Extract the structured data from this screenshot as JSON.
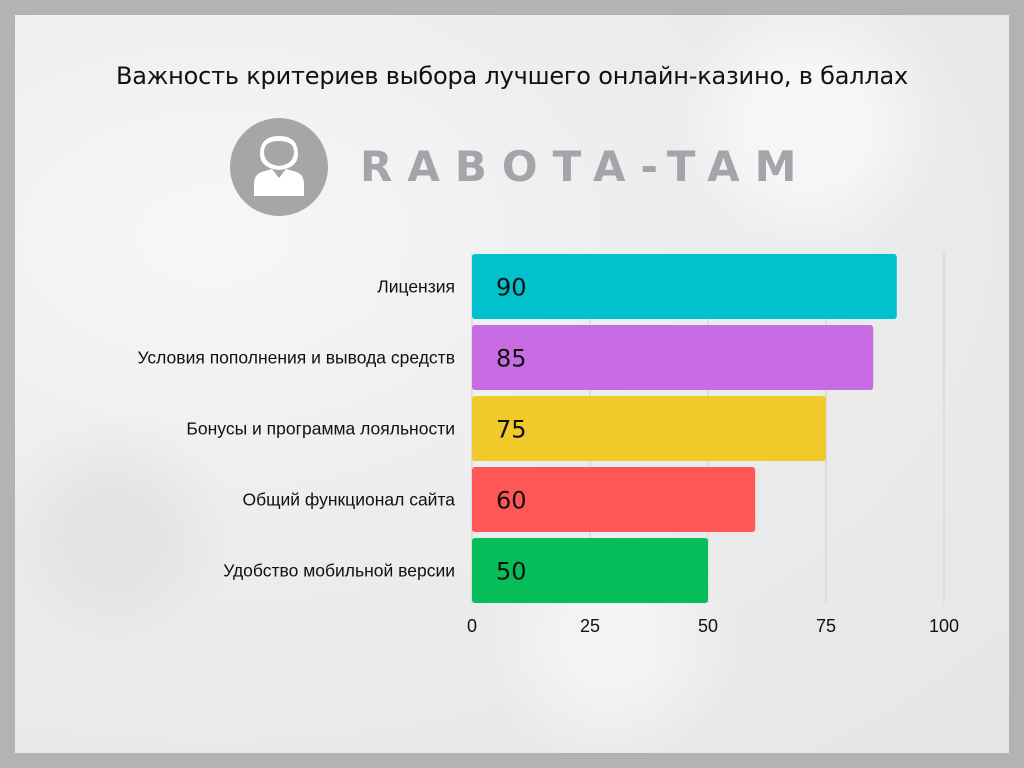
{
  "title": "Важность критериев выбора лучшего онлайн-казино, в баллах",
  "logo": {
    "text": "RABOTA-TAM",
    "icon": "user-avatar-icon",
    "color": "#a7a3ab"
  },
  "chart_data": {
    "type": "bar",
    "orientation": "horizontal",
    "title": "Важность критериев выбора лучшего онлайн-казино, в баллах",
    "categories": [
      "Лицензия",
      "Условия пополнения и вывода средств",
      "Бонусы и программа лояльности",
      "Общий функционал сайта",
      "Удобство мобильной версии"
    ],
    "values": [
      90,
      85,
      75,
      60,
      50
    ],
    "colors": [
      "#00c1cc",
      "#c86ce3",
      "#f0c92b",
      "#ff5757",
      "#07bd59"
    ],
    "xlim": [
      0,
      100
    ],
    "xticks": [
      0,
      25,
      50,
      75,
      100
    ],
    "grid": true,
    "data_labels": true
  }
}
